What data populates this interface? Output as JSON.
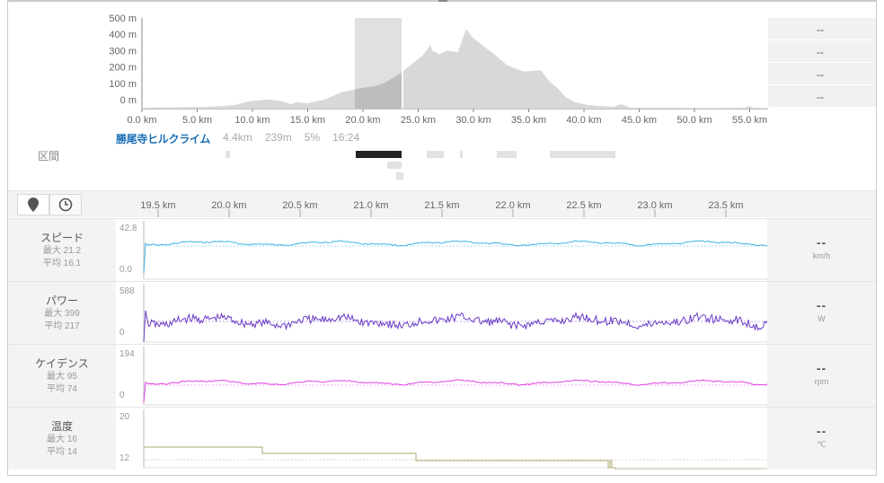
{
  "elevation": {
    "y_ticks": [
      "500 m",
      "400 m",
      "300 m",
      "200 m",
      "100 m",
      "0 m"
    ],
    "x_ticks": [
      "0.0 km",
      "5.0 km",
      "10.0 km",
      "15.0 km",
      "20.0 km",
      "25.0 km",
      "30.0 km",
      "35.0 km",
      "40.0 km",
      "45.0 km",
      "50.0 km",
      "55.0 km"
    ],
    "right_cells": [
      "--",
      "--",
      "--",
      "--"
    ],
    "selection_km": [
      19.7,
      23.8
    ]
  },
  "segment": {
    "name": "勝尾寺ヒルクライム",
    "distance": "4.4km",
    "gain": "239m",
    "grade": "5%",
    "time": "16:24"
  },
  "section_label": "区間",
  "toolbar": {
    "map_icon": "map-pin-icon",
    "time_icon": "clock-icon",
    "x_ticks": [
      "19.5 km",
      "20.0 km",
      "20.5 km",
      "21.0 km",
      "21.5 km",
      "22.0 km",
      "22.5 km",
      "23.0 km",
      "23.5 km"
    ]
  },
  "rows": [
    {
      "name": "スピード",
      "max": "最大 21.2",
      "avg": "平均 16.1",
      "ymax": "42.8",
      "ymin": "0.0",
      "value": "--",
      "unit": "km/h",
      "color": "#3fb3e0"
    },
    {
      "name": "パワー",
      "max": "最大 399",
      "avg": "平均 217",
      "ymax": "588",
      "ymin": "0",
      "value": "--",
      "unit": "W",
      "color": "#6a3bc6"
    },
    {
      "name": "ケイデンス",
      "max": "最大 95",
      "avg": "平均 74",
      "ymax": "194",
      "ymin": "0",
      "value": "--",
      "unit": "rpm",
      "color": "#e040e0"
    },
    {
      "name": "温度",
      "max": "最大 16",
      "avg": "平均 14",
      "ymax": "20",
      "ymin": "12",
      "value": "--",
      "unit": "℃",
      "color": "#b0a870"
    }
  ]
}
